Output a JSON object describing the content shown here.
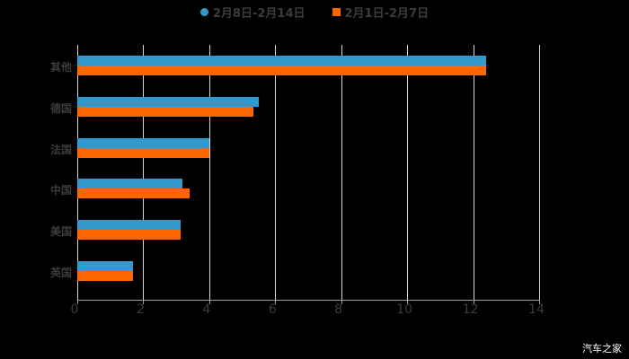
{
  "chart_data": {
    "type": "bar",
    "orientation": "horizontal",
    "categories": [
      "其他",
      "德国",
      "法国",
      "中国",
      "美国",
      "英国"
    ],
    "series": [
      {
        "name": "2月8日-2月14日",
        "color": "#3399cc",
        "values": [
          12.4,
          5.5,
          4.0,
          3.2,
          3.13,
          1.7
        ]
      },
      {
        "name": "2月1日-2月7日",
        "color": "#ff6600",
        "values": [
          12.4,
          5.35,
          4.0,
          3.4,
          3.13,
          1.7
        ]
      }
    ],
    "title": "",
    "xlabel": "",
    "ylabel": "",
    "xlim": [
      0,
      14
    ],
    "xticks": [
      "0",
      "2",
      "4",
      "6",
      "8",
      "10",
      "12",
      "14"
    ],
    "grid": true,
    "legend_position": "top"
  },
  "legend": {
    "items": [
      {
        "label": "2月8日-2月14日",
        "color": "#3399cc",
        "marker": "circle"
      },
      {
        "label": "2月1日-2月7日",
        "color": "#ff6600",
        "marker": "square"
      }
    ]
  },
  "watermark": "汽车之家"
}
